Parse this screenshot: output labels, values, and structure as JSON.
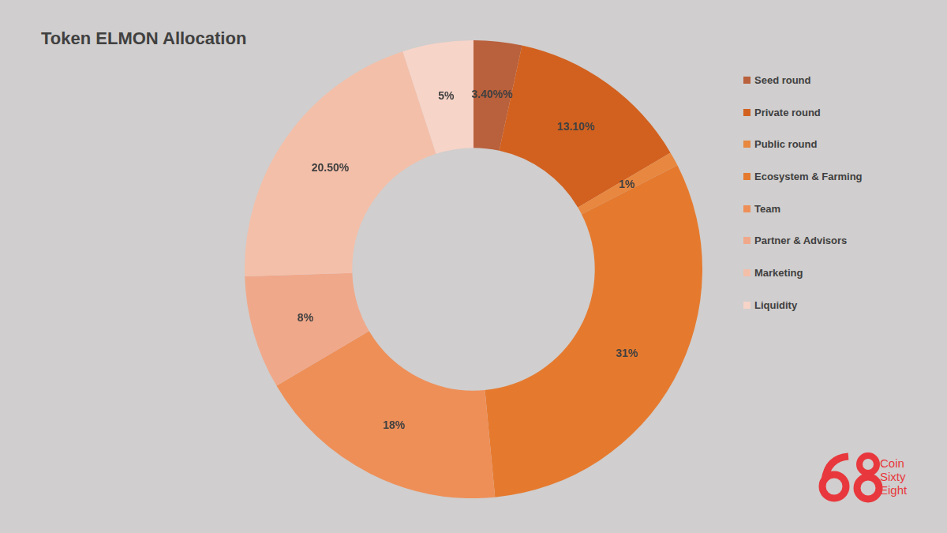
{
  "chart_data": {
    "type": "doughnut",
    "title": "Token ELMON Allocation",
    "categories": [
      "Seed round",
      "Private round",
      "Public round",
      "Ecosystem & Farming",
      "Team",
      "Partner & Advisors",
      "Marketing",
      "Liquidity"
    ],
    "values": [
      3.4,
      13.1,
      1,
      31,
      18,
      8,
      20.5,
      5
    ],
    "value_labels": [
      "3.40%%",
      "13.10%",
      "1%",
      "31%",
      "18%",
      "8%",
      "20.50%",
      "5%"
    ],
    "colors": [
      "#b9603c",
      "#d2611f",
      "#e8873f",
      "#e57a2f",
      "#ee8f58",
      "#f0a88a",
      "#f4bfa9",
      "#f7d4c8"
    ],
    "data_labels": true,
    "legend": "right",
    "watermark": [
      "Coin",
      "Sixty",
      "Eight"
    ]
  }
}
